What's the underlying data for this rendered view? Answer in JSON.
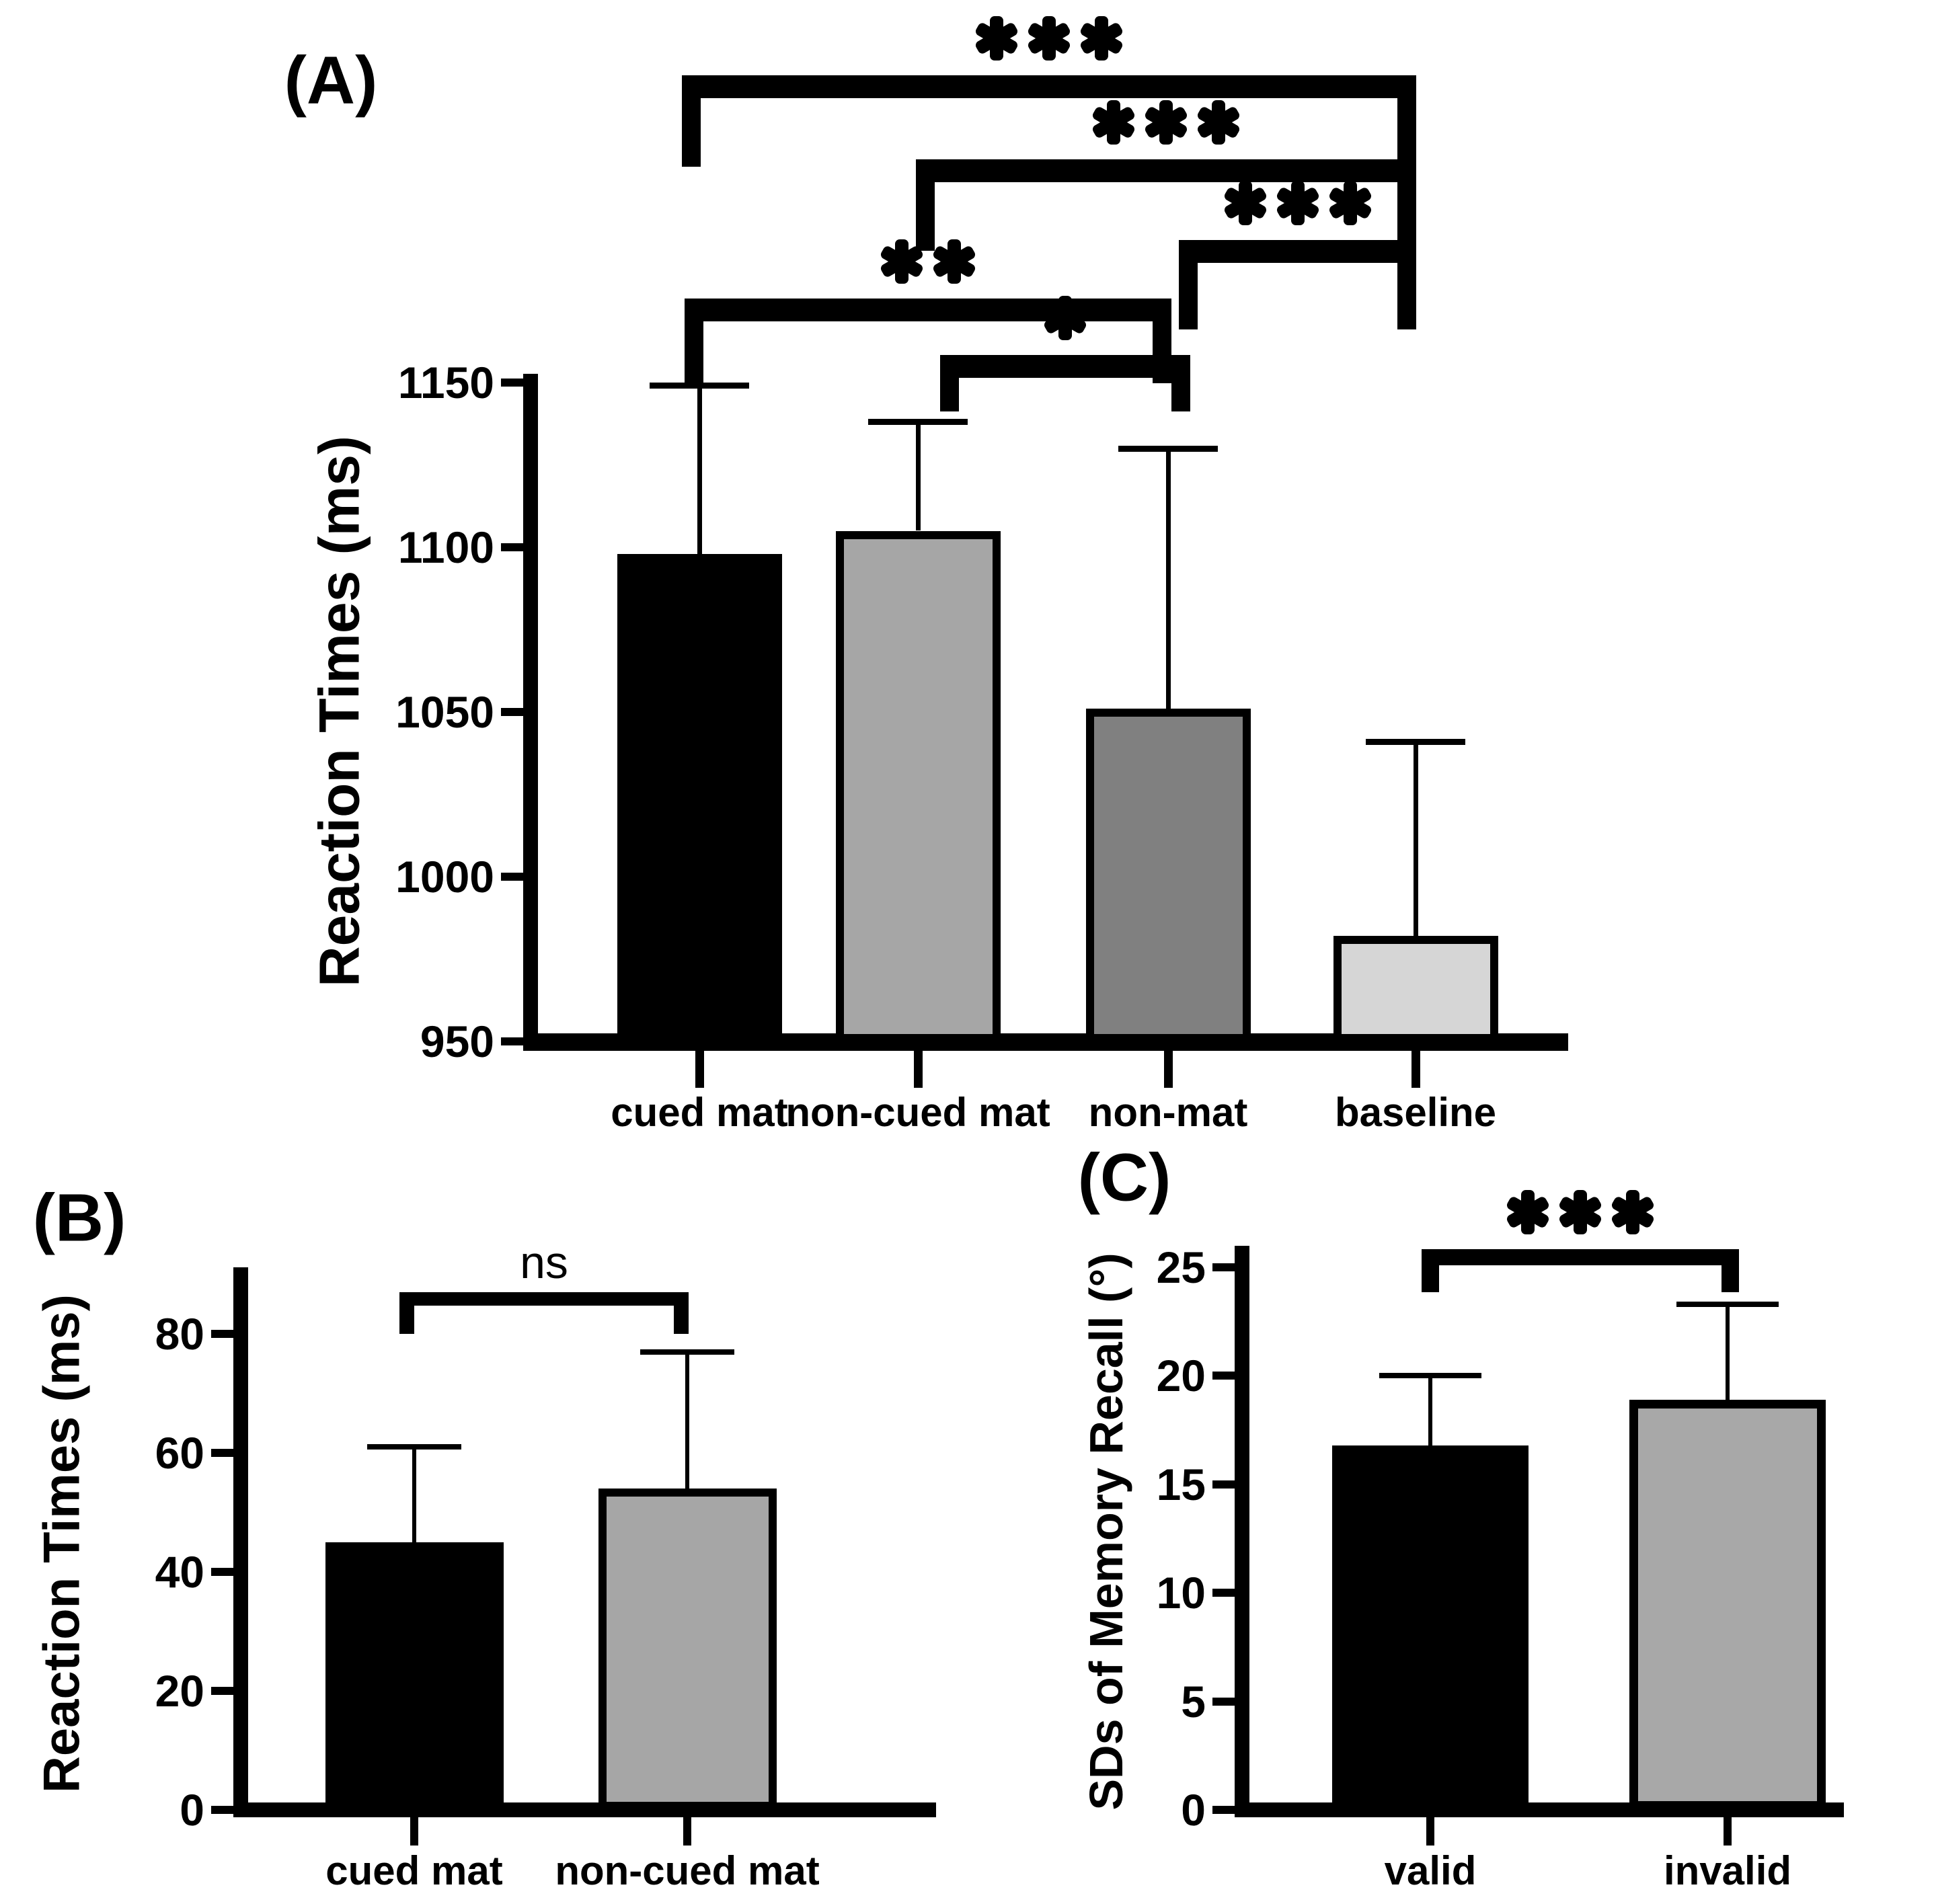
{
  "figure": {
    "background_color": "#ffffff",
    "ink_color": "#000000"
  },
  "chart_data": [
    {
      "panel_label": "(A)",
      "type": "bar",
      "ylabel": "Reaction Times (ms)",
      "xlabel": "",
      "categories": [
        "cued mat",
        "non-cued mat",
        "non-mat",
        "baseline"
      ],
      "values": [
        1098,
        1105,
        1051,
        982
      ],
      "error_top": [
        1149,
        1138,
        1130,
        1041
      ],
      "bar_colors": [
        "#000000",
        "#a6a6a6",
        "#808080",
        "#d6d6d6"
      ],
      "yticks": [
        950,
        1000,
        1050,
        1100,
        1150
      ],
      "ylim": [
        950,
        1150
      ],
      "grid": "off",
      "legend": "none",
      "significance": [
        {
          "from": "cued mat",
          "to": "baseline",
          "label": "***"
        },
        {
          "from": "non-cued mat",
          "to": "baseline",
          "label": "***"
        },
        {
          "from": "non-mat",
          "to": "baseline",
          "label": "***"
        },
        {
          "from": "cued mat",
          "to": "non-mat",
          "label": "**"
        },
        {
          "from": "non-cued mat",
          "to": "non-mat",
          "label": "*"
        }
      ]
    },
    {
      "panel_label": "(B)",
      "type": "bar",
      "ylabel": "Reaction Times (ms)",
      "xlabel": "",
      "categories": [
        "cued mat",
        "non-cued mat"
      ],
      "values": [
        45,
        54
      ],
      "error_top": [
        61,
        77
      ],
      "bar_colors": [
        "#000000",
        "#a6a6a6"
      ],
      "yticks": [
        0,
        20,
        40,
        60,
        80
      ],
      "ylim": [
        0,
        91
      ],
      "grid": "off",
      "legend": "none",
      "significance": [
        {
          "from": "cued mat",
          "to": "non-cued mat",
          "label": "ns"
        }
      ]
    },
    {
      "panel_label": "(C)",
      "type": "bar",
      "ylabel": "SDs of Memory Recall (°)",
      "xlabel": "",
      "categories": [
        "valid",
        "invalid"
      ],
      "values": [
        16.8,
        18.9
      ],
      "error_top": [
        20.0,
        23.3
      ],
      "bar_colors": [
        "#000000",
        "#a8a8a8"
      ],
      "yticks": [
        0,
        5,
        10,
        15,
        20,
        25
      ],
      "ylim": [
        0,
        26
      ],
      "grid": "off",
      "legend": "none",
      "significance": [
        {
          "from": "valid",
          "to": "invalid",
          "label": "***"
        }
      ]
    }
  ]
}
